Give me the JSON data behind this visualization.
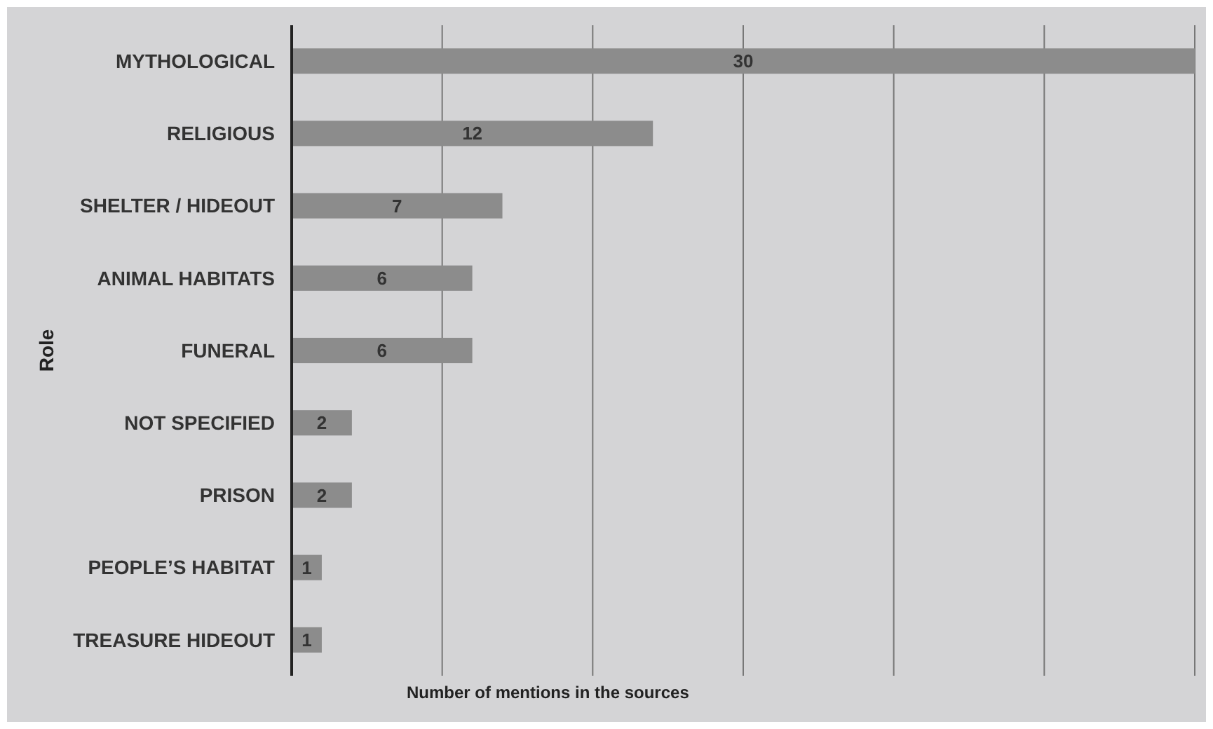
{
  "chart_data": {
    "type": "bar",
    "orientation": "horizontal",
    "xlabel": "Number of mentions in the sources",
    "ylabel": "Role",
    "categories": [
      "MYTHOLOGICAL",
      "RELIGIOUS",
      "SHELTER / HIDEOUT",
      "ANIMAL HABITATS",
      "FUNERAL",
      "NOT SPECIFIED",
      "PRISON",
      "PEOPLE’S HABITAT",
      "TREASURE HIDEOUT"
    ],
    "values": [
      30,
      12,
      7,
      6,
      6,
      2,
      2,
      1,
      1
    ],
    "color": "#8c8c8c",
    "data_labels": true,
    "xlim": [
      0,
      30
    ],
    "xticks": [
      {
        "value": 0,
        "label": null
      },
      {
        "value": 5,
        "label": null
      },
      {
        "value": 10,
        "label": null
      },
      {
        "value": 15,
        "label": null
      },
      {
        "value": 20,
        "label": null
      },
      {
        "value": 25,
        "label": null
      },
      {
        "value": 30,
        "label": null
      }
    ],
    "grid": "x",
    "tick_labels": "y"
  }
}
